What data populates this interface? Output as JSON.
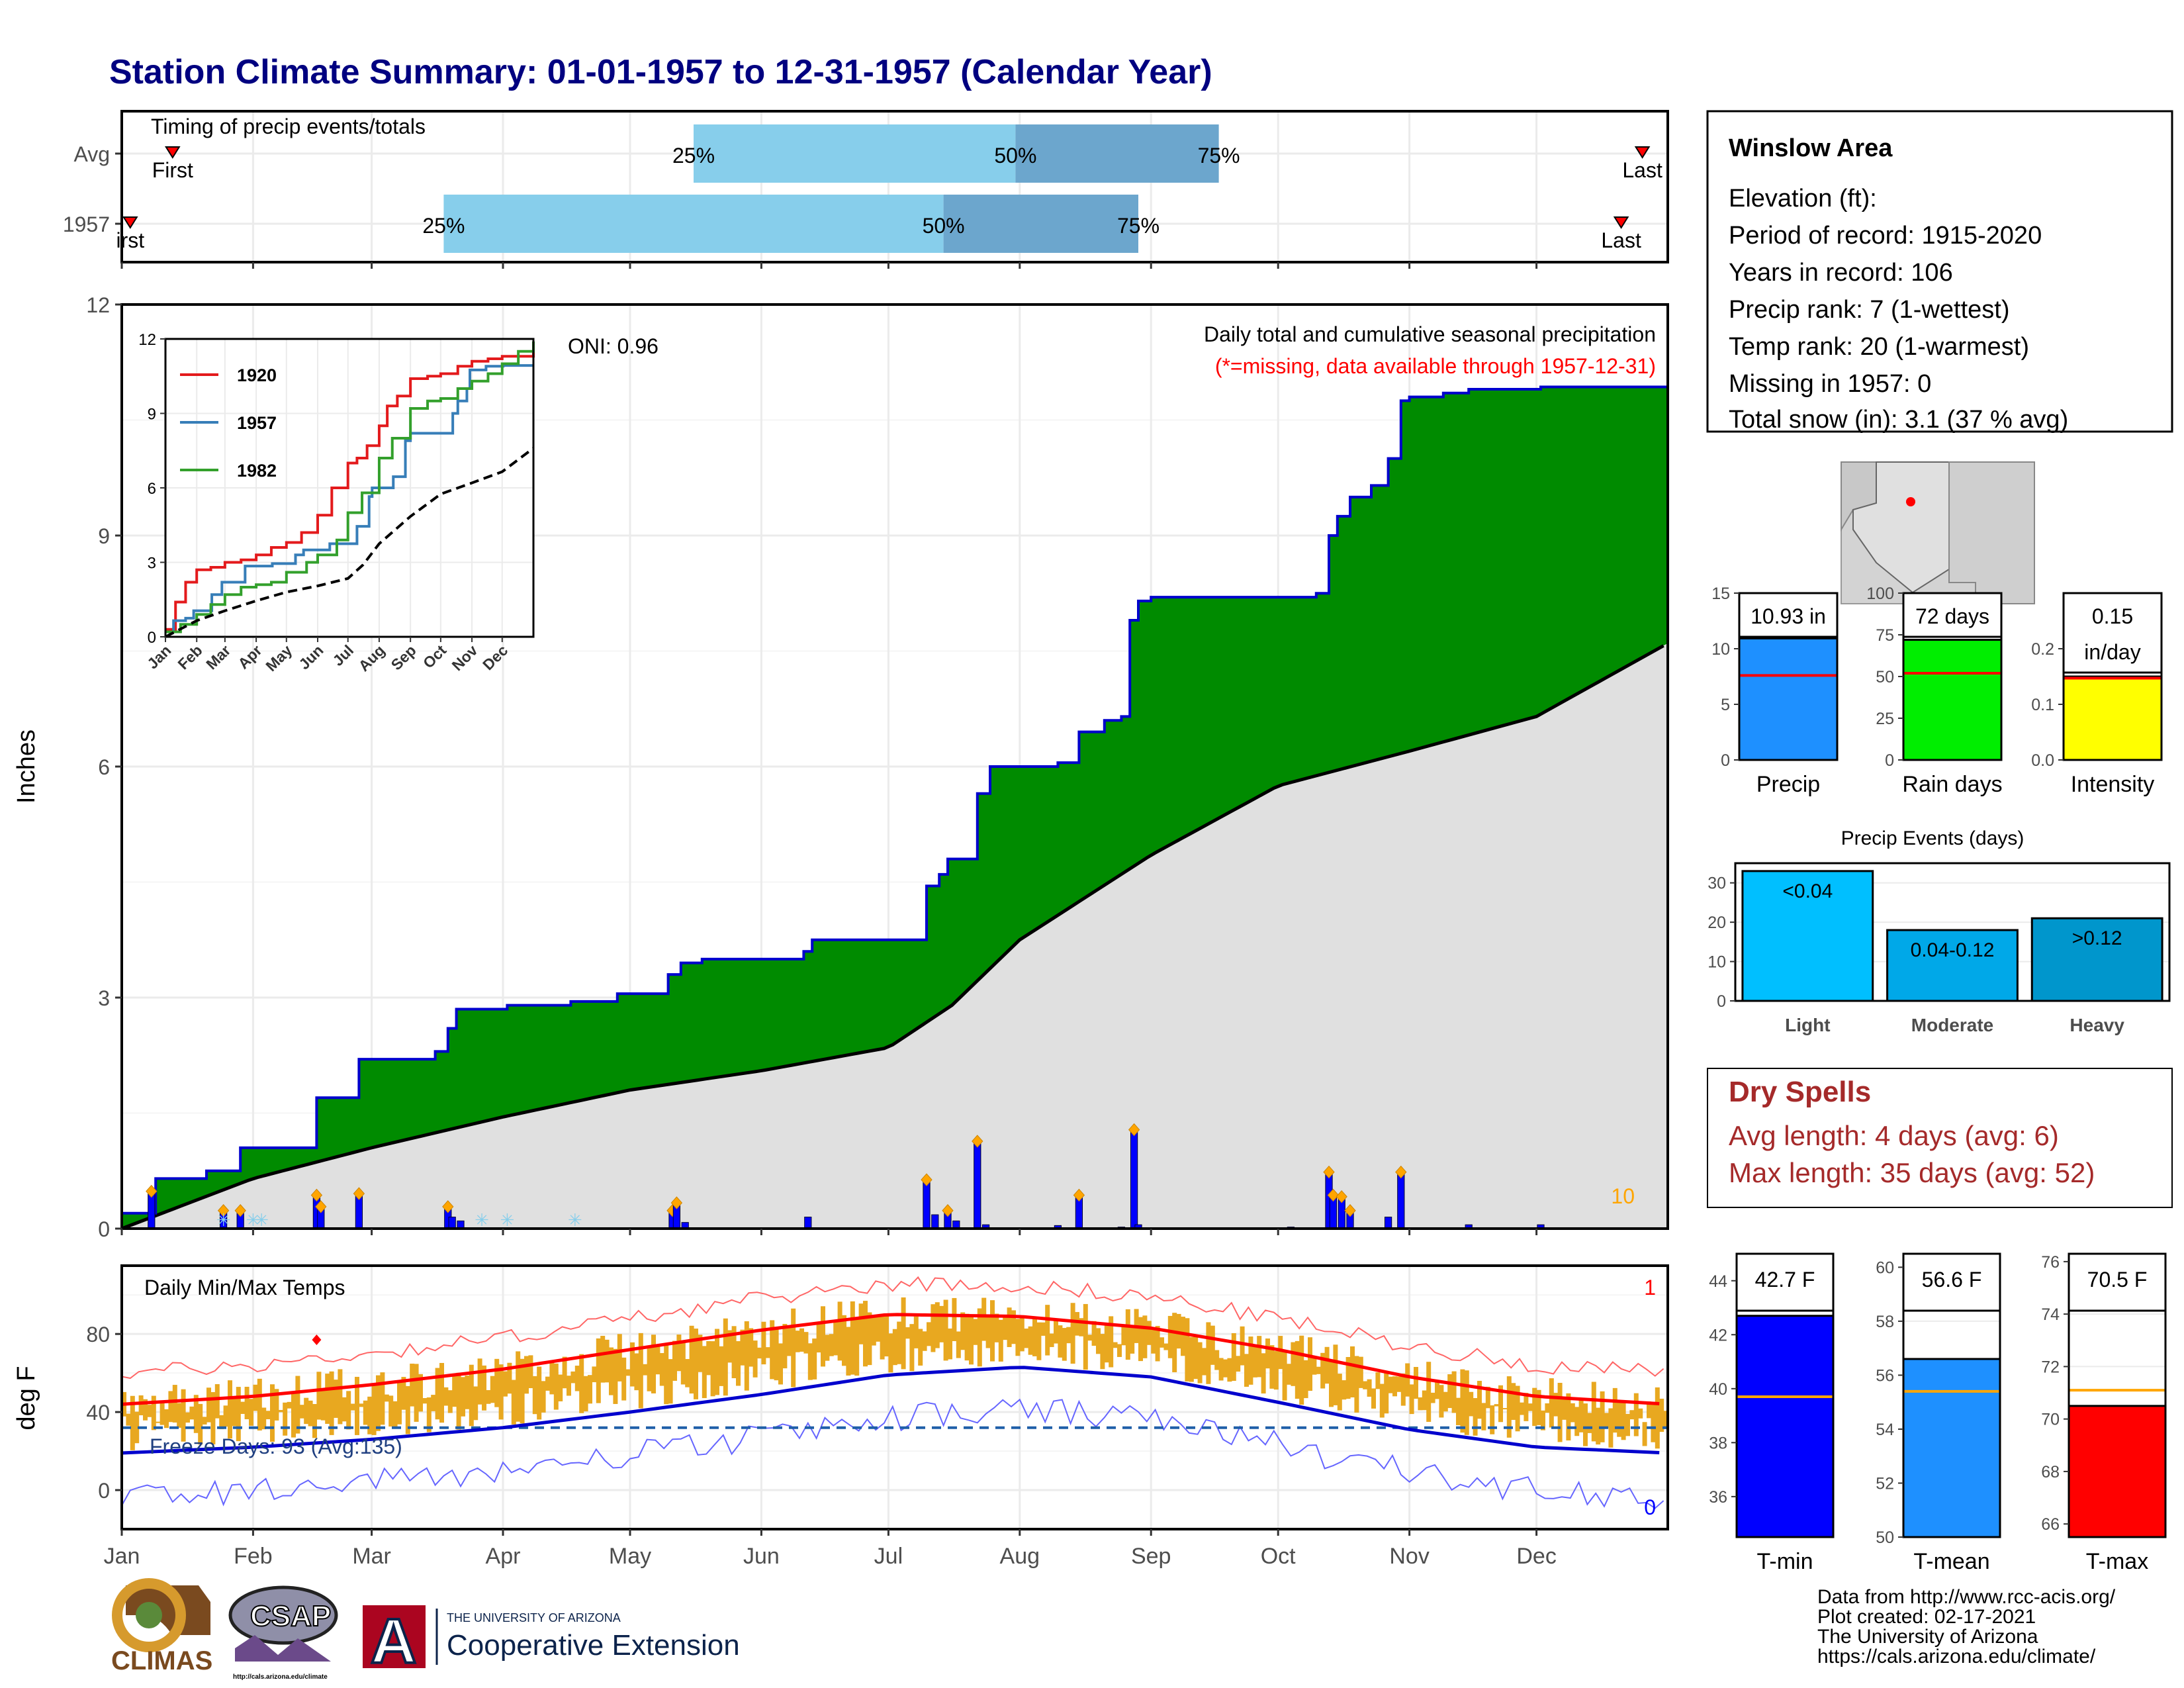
{
  "page": {
    "title": "Station Climate Summary: 01-01-1957 to 12-31-1957 (Calendar Year)"
  },
  "timing_panel": {
    "label": "Timing of precip events/totals",
    "rows": [
      {
        "label": "Avg",
        "first_day": 12,
        "last_day": 359,
        "p25_day": 135,
        "p50_day": 211,
        "p75_day": 259,
        "first_label": "First",
        "last_label": "Last"
      },
      {
        "label": "1957",
        "first_day": 2,
        "last_day": 354,
        "p25_day": 76,
        "p50_day": 194,
        "p75_day": 240,
        "first_label": "irst",
        "last_label": "Last"
      }
    ],
    "pct_labels": [
      "25%",
      "50%",
      "75%"
    ]
  },
  "precip_panel": {
    "ylabel": "Inches",
    "yticks": [
      0,
      3,
      6,
      9,
      12
    ],
    "ylim": [
      0,
      12
    ],
    "title_line1": "Daily total and cumulative seasonal precipitation",
    "title_line2": "(*=missing, data available through 1957-12-31)",
    "oni_label": "ONI: 0.96",
    "count_label": "10"
  },
  "inset": {
    "yticks": [
      0,
      3,
      6,
      9,
      12
    ],
    "ylim": [
      0,
      12
    ],
    "months": [
      "Jan",
      "Feb",
      "Mar",
      "Apr",
      "May",
      "Jun",
      "Jul",
      "Aug",
      "Sep",
      "Oct",
      "Nov",
      "Dec"
    ],
    "legend": [
      {
        "name": "1920",
        "color": "#e31a1c"
      },
      {
        "name": "1957",
        "color": "#377eb8"
      },
      {
        "name": "1982",
        "color": "#33a02c"
      }
    ]
  },
  "temp_panel": {
    "ylabel": "deg F",
    "yticks": [
      0,
      40,
      80
    ],
    "label": "Daily Min/Max Temps",
    "freeze_label": "Freeze Days: 93 (Avg:135)",
    "freeze_line": 32,
    "record_high_count": "1",
    "record_low_count": "0"
  },
  "months": [
    "Jan",
    "Feb",
    "Mar",
    "Apr",
    "May",
    "Jun",
    "Jul",
    "Aug",
    "Sep",
    "Oct",
    "Nov",
    "Dec"
  ],
  "info": {
    "station": "Winslow Area",
    "lines": [
      "Elevation (ft):",
      "Period of record: 1915-2020",
      "Years in record: 106",
      "Precip rank: 7 (1-wettest)",
      "Temp rank: 20 (1-warmest)",
      "Missing in 1957: 0",
      "Total snow (in): 3.1 (37 % avg)"
    ]
  },
  "mini_bars": [
    {
      "label": "Precip",
      "value_text": "10.93 in",
      "value": 10.93,
      "avg": 7.6,
      "ymax": 15,
      "yticks": [
        0,
        5,
        10,
        15
      ],
      "color": "#1e90ff"
    },
    {
      "label": "Rain days",
      "value_text": "72 days",
      "value": 72,
      "avg": 52,
      "ymax": 100,
      "yticks": [
        0,
        25,
        50,
        75,
        100
      ],
      "color": "#00ee00"
    },
    {
      "label": "Intensity",
      "value_text": "0.15",
      "value_text2": "in/day",
      "value": 0.15,
      "avg": 0.147,
      "ymax": 0.3,
      "yticks": [
        0.0,
        0.1,
        0.2
      ],
      "color": "#ffff00"
    }
  ],
  "precip_events": {
    "title": "Precip Events (days)",
    "yticks": [
      0,
      10,
      20,
      30
    ],
    "ymax": 35,
    "bars": [
      {
        "category": "Light",
        "label": "<0.04",
        "value": 33,
        "color": "#00bfff"
      },
      {
        "category": "Moderate",
        "label": "0.04-0.12",
        "value": 18,
        "color": "#00a8e8"
      },
      {
        "category": "Heavy",
        "label": ">0.12",
        "value": 21,
        "color": "#0096cc"
      }
    ]
  },
  "dry_spells": {
    "title": "Dry Spells",
    "avg_line": "Avg length: 4 days (avg: 6)",
    "max_line": "Max length: 35 days (avg: 52)"
  },
  "temp_bars": [
    {
      "label": "T-min",
      "value_text": "42.7 F",
      "value": 42.7,
      "avg": 39.7,
      "ymin": 34.5,
      "ymax": 45,
      "yticks": [
        36,
        38,
        40,
        42,
        44
      ],
      "color": "#0000ff"
    },
    {
      "label": "T-mean",
      "value_text": "56.6 F",
      "value": 56.6,
      "avg": 55.4,
      "ymin": 50,
      "ymax": 60.5,
      "yticks": [
        50,
        52,
        54,
        56,
        58,
        60
      ],
      "color": "#1e90ff"
    },
    {
      "label": "T-max",
      "value_text": "70.5 F",
      "value": 70.5,
      "avg": 71.1,
      "ymin": 65.5,
      "ymax": 76.3,
      "yticks": [
        66,
        68,
        70,
        72,
        74,
        76
      ],
      "color": "#ff0000"
    }
  ],
  "footer": {
    "lines": [
      "Data from http://www.rcc-acis.org/",
      "Plot created: 02-17-2021",
      "The University of Arizona",
      "https://cals.arizona.edu/climate/"
    ],
    "logo_climas": "CLIMAS",
    "logo_csap": "CSAP",
    "logo_csap_url": "http://cals.arizona.edu/climate",
    "logo_ua_letter": "A",
    "logo_ua_line1": "THE UNIVERSITY OF ARIZONA",
    "logo_ua_line2": "Cooperative Extension"
  },
  "chart_data": [
    {
      "type": "area",
      "title": "Daily total and cumulative seasonal precipitation",
      "ylabel": "Inches",
      "ylim": [
        0,
        12
      ],
      "x_unit": "day of year",
      "cumulative_1957_steps": [
        [
          0,
          0.2
        ],
        [
          8,
          0.65
        ],
        [
          20,
          0.75
        ],
        [
          28,
          1.05
        ],
        [
          46,
          1.7
        ],
        [
          56,
          2.2
        ],
        [
          74,
          2.3
        ],
        [
          77,
          2.6
        ],
        [
          79,
          2.85
        ],
        [
          91,
          2.9
        ],
        [
          106,
          2.95
        ],
        [
          117,
          3.05
        ],
        [
          129,
          3.3
        ],
        [
          132,
          3.45
        ],
        [
          137,
          3.5
        ],
        [
          161,
          3.6
        ],
        [
          163,
          3.75
        ],
        [
          188,
          3.75
        ],
        [
          190,
          4.45
        ],
        [
          193,
          4.6
        ],
        [
          195,
          4.8
        ],
        [
          202,
          5.65
        ],
        [
          205,
          6.0
        ],
        [
          214,
          6.0
        ],
        [
          221,
          6.05
        ],
        [
          226,
          6.45
        ],
        [
          232,
          6.6
        ],
        [
          236,
          6.65
        ],
        [
          238,
          7.9
        ],
        [
          240,
          8.15
        ],
        [
          243,
          8.2
        ],
        [
          276,
          8.2
        ],
        [
          282,
          8.25
        ],
        [
          285,
          9.0
        ],
        [
          287,
          9.25
        ],
        [
          290,
          9.5
        ],
        [
          295,
          9.65
        ],
        [
          297,
          9.65
        ],
        [
          299,
          10.0
        ],
        [
          302,
          10.75
        ],
        [
          304,
          10.8
        ],
        [
          312,
          10.85
        ],
        [
          318,
          10.9
        ],
        [
          335,
          10.93
        ],
        [
          365,
          10.93
        ]
      ],
      "average_cumulative": [
        [
          0,
          0
        ],
        [
          31,
          0.65
        ],
        [
          59,
          1.05
        ],
        [
          90,
          1.45
        ],
        [
          120,
          1.8
        ],
        [
          151,
          2.05
        ],
        [
          181,
          2.35
        ],
        [
          196,
          2.9
        ],
        [
          212,
          3.75
        ],
        [
          243,
          4.85
        ],
        [
          273,
          5.75
        ],
        [
          304,
          6.2
        ],
        [
          334,
          6.65
        ],
        [
          365,
          7.6
        ]
      ],
      "daily_bars": [
        [
          7,
          0.45
        ],
        [
          24,
          0.2
        ],
        [
          28,
          0.2
        ],
        [
          46,
          0.4
        ],
        [
          47,
          0.25
        ],
        [
          56,
          0.42
        ],
        [
          77,
          0.25
        ],
        [
          78,
          0.15
        ],
        [
          80,
          0.1
        ],
        [
          130,
          0.2
        ],
        [
          131,
          0.3
        ],
        [
          133,
          0.08
        ],
        [
          162,
          0.15
        ],
        [
          190,
          0.6
        ],
        [
          192,
          0.18
        ],
        [
          195,
          0.2
        ],
        [
          197,
          0.1
        ],
        [
          202,
          1.1
        ],
        [
          204,
          0.05
        ],
        [
          221,
          0.04
        ],
        [
          226,
          0.4
        ],
        [
          236,
          0.02
        ],
        [
          239,
          1.25
        ],
        [
          240,
          0.05
        ],
        [
          276,
          0.02
        ],
        [
          285,
          0.7
        ],
        [
          286,
          0.4
        ],
        [
          288,
          0.38
        ],
        [
          290,
          0.2
        ],
        [
          299,
          0.15
        ],
        [
          302,
          0.7
        ],
        [
          318,
          0.05
        ],
        [
          335,
          0.05
        ]
      ]
    },
    {
      "type": "line",
      "title": "",
      "ylim": [
        0,
        12
      ],
      "series": [
        {
          "name": "1920",
          "x": [
            0,
            10,
            20,
            31,
            45,
            59,
            75,
            90,
            105,
            120,
            135,
            151,
            165,
            181,
            190,
            200,
            212,
            220,
            230,
            243,
            260,
            273,
            290,
            304,
            320,
            334,
            365
          ],
          "y": [
            0.3,
            1.4,
            2.2,
            2.7,
            2.8,
            3.0,
            3.1,
            3.3,
            3.6,
            3.8,
            4.2,
            4.9,
            6.0,
            7.0,
            7.2,
            7.7,
            8.5,
            9.3,
            9.7,
            10.4,
            10.5,
            10.6,
            10.9,
            11.1,
            11.2,
            11.3,
            11.6
          ]
        },
        {
          "name": "1957",
          "x": [
            0,
            8,
            20,
            28,
            46,
            56,
            79,
            106,
            129,
            137,
            163,
            190,
            202,
            205,
            226,
            238,
            243,
            276,
            285,
            290,
            299,
            302,
            318,
            335,
            365
          ],
          "y": [
            0.2,
            0.65,
            0.75,
            1.05,
            1.7,
            2.2,
            2.85,
            2.95,
            3.3,
            3.5,
            3.75,
            4.45,
            5.65,
            6.0,
            6.45,
            7.9,
            8.2,
            8.2,
            9.0,
            9.5,
            10.0,
            10.75,
            10.9,
            10.93,
            10.93
          ]
        },
        {
          "name": "1982",
          "x": [
            0,
            15,
            31,
            45,
            59,
            75,
            90,
            105,
            120,
            140,
            151,
            170,
            181,
            195,
            212,
            225,
            243,
            260,
            273,
            290,
            304,
            320,
            334,
            350,
            365
          ],
          "y": [
            0.2,
            0.5,
            0.9,
            1.3,
            1.7,
            2.0,
            2.1,
            2.2,
            2.6,
            3.0,
            3.3,
            3.9,
            5.0,
            5.8,
            7.2,
            8.0,
            9.2,
            9.5,
            9.6,
            10.0,
            10.3,
            10.6,
            11.0,
            11.5,
            11.9
          ]
        },
        {
          "name": "",
          "x": [
            0,
            31,
            59,
            90,
            120,
            151,
            181,
            196,
            212,
            243,
            273,
            304,
            334,
            365
          ],
          "y": [
            0,
            0.65,
            1.05,
            1.45,
            1.8,
            2.05,
            2.35,
            2.9,
            3.75,
            4.85,
            5.75,
            6.2,
            6.65,
            7.6
          ]
        }
      ]
    },
    {
      "type": "line",
      "title": "Daily Min/Max Temps",
      "ylabel": "deg F",
      "freeze_days": 93,
      "avg_freeze_days": 135,
      "series": [
        {
          "name": "",
          "x": [
            0,
            31,
            59,
            90,
            120,
            151,
            181,
            212,
            243,
            273,
            304,
            334,
            365
          ],
          "y": [
            44,
            48,
            54,
            62,
            72,
            82,
            90,
            89,
            83,
            72,
            58,
            48,
            44
          ]
        },
        {
          "name": "",
          "x": [
            0,
            31,
            59,
            90,
            120,
            151,
            181,
            212,
            243,
            273,
            304,
            334,
            365
          ],
          "y": [
            19,
            22,
            26,
            32,
            40,
            49,
            59,
            63,
            58,
            45,
            31,
            22,
            19
          ]
        }
      ]
    },
    {
      "type": "bar",
      "categories": [
        "Precip",
        "Rain days",
        "Intensity"
      ],
      "values": [
        10.93,
        72,
        0.15
      ]
    },
    {
      "type": "bar",
      "title": "Precip Events (days)",
      "categories": [
        "Light",
        "Moderate",
        "Heavy"
      ],
      "values": [
        33,
        18,
        21
      ]
    },
    {
      "type": "bar",
      "categories": [
        "T-min",
        "T-mean",
        "T-max"
      ],
      "values": [
        42.7,
        56.6,
        70.5
      ]
    }
  ]
}
